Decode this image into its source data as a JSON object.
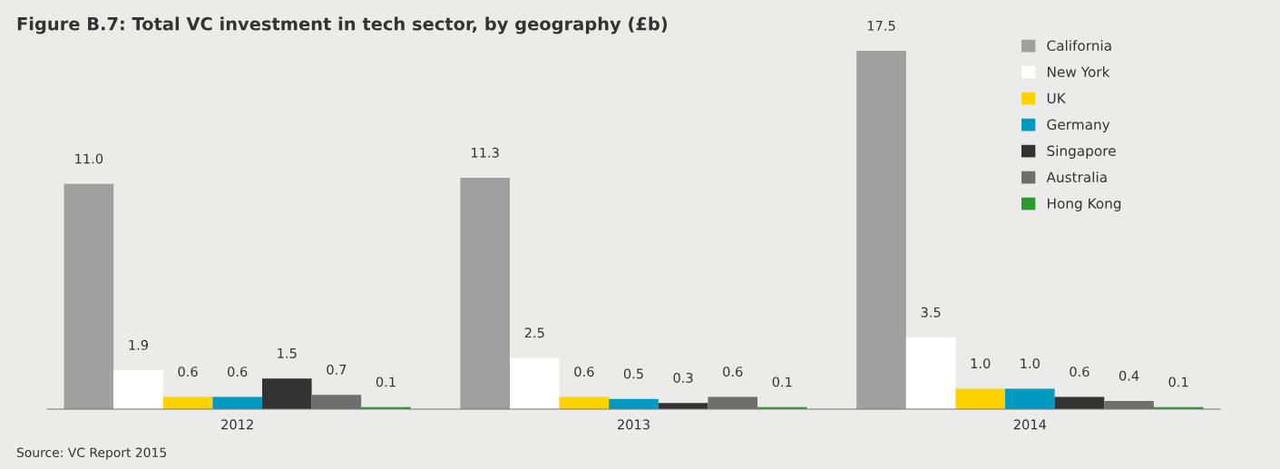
{
  "chart_data": {
    "type": "bar",
    "title": "Figure B.7: Total VC investment in tech sector, by geography (£b)",
    "categories": [
      "2012",
      "2013",
      "2014"
    ],
    "series": [
      {
        "name": "California",
        "color": "#a0a0a0",
        "values": [
          11.0,
          11.3,
          17.5
        ],
        "value_labels": [
          "11.0",
          "11.3",
          "17.5"
        ]
      },
      {
        "name": "New York",
        "color": "#ffffff",
        "values": [
          1.9,
          2.5,
          3.5
        ],
        "value_labels": [
          "1.9",
          "2.5",
          "3.5"
        ]
      },
      {
        "name": "UK",
        "color": "#ffd200",
        "values": [
          0.6,
          0.6,
          1.0
        ],
        "value_labels": [
          "0.6",
          "0.6",
          "1.0"
        ]
      },
      {
        "name": "Germany",
        "color": "#0099c0",
        "values": [
          0.6,
          0.5,
          1.0
        ],
        "value_labels": [
          "0.6",
          "0.5",
          "1.0"
        ]
      },
      {
        "name": "Singapore",
        "color": "#333333",
        "values": [
          1.5,
          0.3,
          0.6
        ],
        "value_labels": [
          "1.5",
          "0.3",
          "0.6"
        ]
      },
      {
        "name": "Australia",
        "color": "#6e6e6e",
        "values": [
          0.7,
          0.6,
          0.4
        ],
        "value_labels": [
          "0.7",
          "0.6",
          "0.4"
        ]
      },
      {
        "name": "Hong Kong",
        "color": "#2e9a2e",
        "values": [
          0.1,
          0.1,
          0.1
        ],
        "value_labels": [
          "0.1",
          "0.1",
          "0.1"
        ]
      }
    ],
    "legend": "top right",
    "annotations": [
      "Source: VC Report 2015"
    ]
  }
}
